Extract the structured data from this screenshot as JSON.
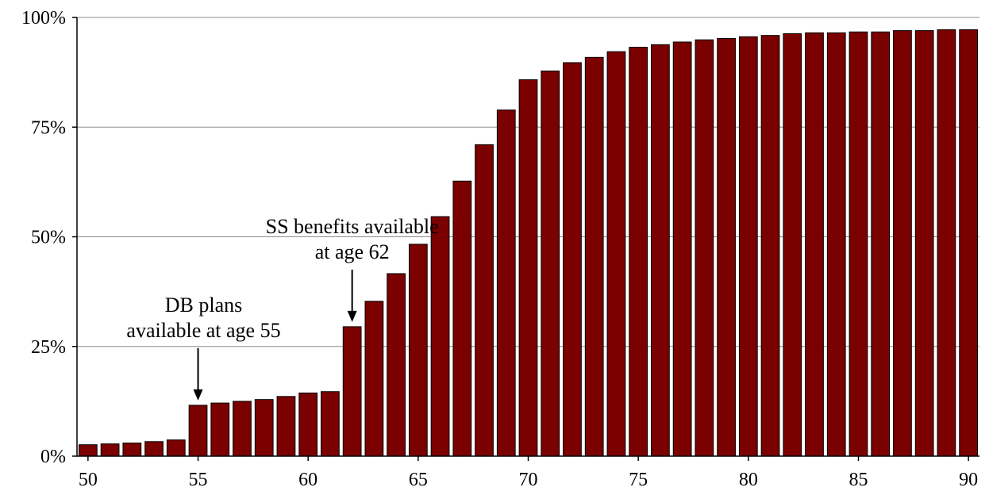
{
  "chart_data": {
    "type": "bar",
    "title": "",
    "xlabel": "",
    "ylabel": "",
    "categories": [
      50,
      51,
      52,
      53,
      54,
      55,
      56,
      57,
      58,
      59,
      60,
      61,
      62,
      63,
      64,
      65,
      66,
      67,
      68,
      69,
      70,
      71,
      72,
      73,
      74,
      75,
      76,
      77,
      78,
      79,
      80,
      81,
      82,
      83,
      84,
      85,
      86,
      87,
      88,
      89,
      90
    ],
    "values": [
      2.6,
      2.8,
      3.0,
      3.3,
      3.7,
      11.6,
      12.1,
      12.5,
      12.9,
      13.6,
      14.4,
      14.7,
      29.5,
      35.3,
      41.6,
      48.3,
      54.6,
      62.7,
      71.0,
      78.9,
      85.8,
      87.8,
      89.7,
      90.9,
      92.2,
      93.2,
      93.8,
      94.4,
      94.9,
      95.2,
      95.6,
      95.9,
      96.3,
      96.5,
      96.5,
      96.7,
      96.7,
      97.0,
      97.0,
      97.2,
      97.2
    ],
    "ylim": [
      0,
      100
    ],
    "y_ticks": [
      0,
      25,
      50,
      75,
      100
    ],
    "y_tick_labels": [
      "0%",
      "25%",
      "50%",
      "75%",
      "100%"
    ],
    "x_ticks": [
      50,
      55,
      60,
      65,
      70,
      75,
      80,
      85,
      90
    ],
    "x_tick_labels": [
      "50",
      "55",
      "60",
      "65",
      "70",
      "75",
      "80",
      "85",
      "90"
    ],
    "grid": true,
    "bar_color": "#7b0000",
    "annotations": [
      {
        "lines": [
          "DB plans",
          "available at age 55"
        ],
        "target_x": 55,
        "target_value": 11.6
      },
      {
        "lines": [
          "SS benefits available",
          "at age 62"
        ],
        "target_x": 62,
        "target_value": 29.5
      }
    ]
  }
}
